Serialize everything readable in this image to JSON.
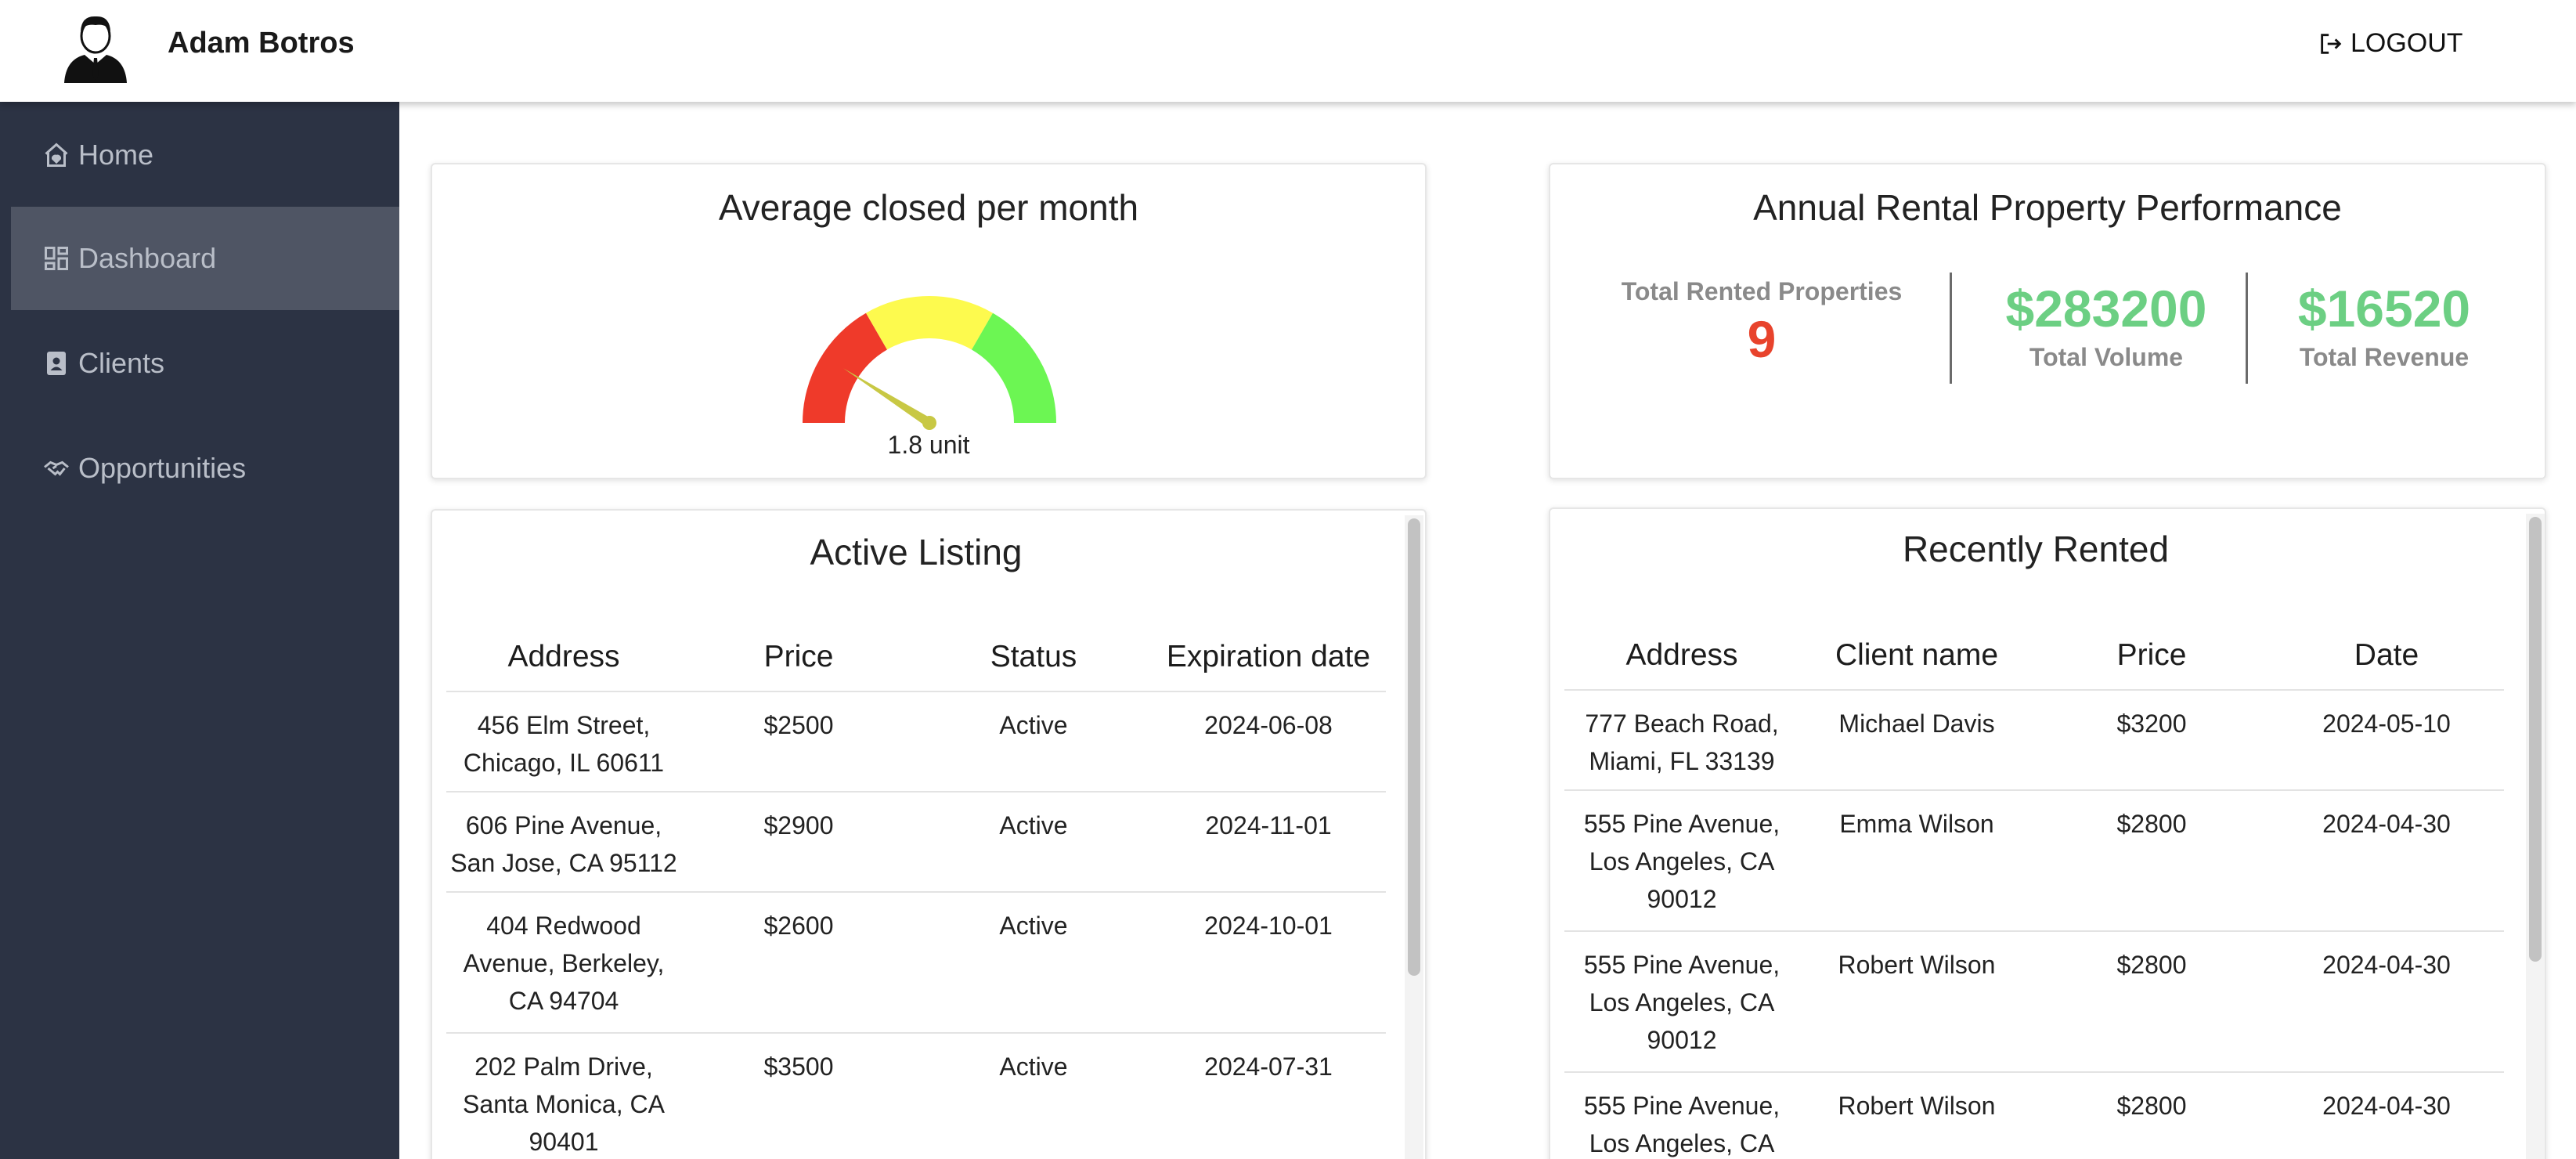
{
  "header": {
    "user_name": "Adam Botros",
    "logout_label": "LOGOUT",
    "avatar_icon": "user-avatar-icon",
    "logout_icon": "logout-icon"
  },
  "sidebar": {
    "items": [
      {
        "label": "Home",
        "icon": "home-icon"
      },
      {
        "label": "Dashboard",
        "icon": "dashboard-icon",
        "active": true
      },
      {
        "label": "Clients",
        "icon": "contacts-icon"
      },
      {
        "label": "Opportunities",
        "icon": "handshake-icon"
      }
    ]
  },
  "gauge_card": {
    "title": "Average closed per month",
    "value_label": "1.8 unit",
    "value": 1.8,
    "segment_colors": [
      "#ef3a2a",
      "#fdfa4e",
      "#6cf653"
    ],
    "needle_color": "#c8c844"
  },
  "performance_card": {
    "title": "Annual Rental Property Performance",
    "total_rented_label": "Total Rented Properties",
    "total_rented_value": "9",
    "total_volume_value": "$283200",
    "total_volume_label": "Total Volume",
    "total_revenue_value": "$16520",
    "total_revenue_label": "Total Revenue"
  },
  "active_listing": {
    "title": "Active Listing",
    "columns": [
      "Address",
      "Price",
      "Status",
      "Expiration date"
    ],
    "rows": [
      {
        "address": [
          "456 Elm Street,",
          "Chicago, IL 60611"
        ],
        "price": "$2500",
        "status": "Active",
        "expiration": "2024-06-08"
      },
      {
        "address": [
          "606 Pine Avenue,",
          "San Jose, CA 95112"
        ],
        "price": "$2900",
        "status": "Active",
        "expiration": "2024-11-01"
      },
      {
        "address": [
          "404 Redwood",
          "Avenue, Berkeley,",
          "CA 94704"
        ],
        "price": "$2600",
        "status": "Active",
        "expiration": "2024-10-01"
      },
      {
        "address": [
          "202 Palm Drive,",
          "Santa Monica, CA",
          "90401"
        ],
        "price": "$3500",
        "status": "Active",
        "expiration": "2024-07-31"
      }
    ]
  },
  "recently_rented": {
    "title": "Recently Rented",
    "columns": [
      "Address",
      "Client name",
      "Price",
      "Date"
    ],
    "rows": [
      {
        "address": [
          "777 Beach Road,",
          "Miami, FL 33139"
        ],
        "client": "Michael Davis",
        "price": "$3200",
        "date": "2024-05-10"
      },
      {
        "address": [
          "555 Pine Avenue,",
          "Los Angeles, CA",
          "90012"
        ],
        "client": "Emma Wilson",
        "price": "$2800",
        "date": "2024-04-30"
      },
      {
        "address": [
          "555 Pine Avenue,",
          "Los Angeles, CA",
          "90012"
        ],
        "client": "Robert Wilson",
        "price": "$2800",
        "date": "2024-04-30"
      },
      {
        "address": [
          "555 Pine Avenue,",
          "Los Angeles, CA"
        ],
        "client": "Robert Wilson",
        "price": "$2800",
        "date": "2024-04-30"
      }
    ]
  }
}
